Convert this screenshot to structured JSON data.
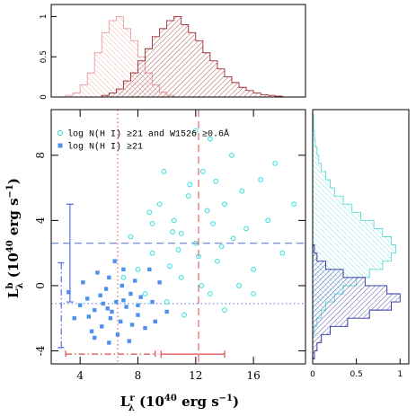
{
  "chart_data": [
    {
      "type": "scatter",
      "x_label": [
        "L",
        "r",
        "λ",
        " (10",
        "40",
        " erg s",
        "−1",
        ")"
      ],
      "y_label": [
        "L",
        "b",
        "λ",
        " (10",
        "40",
        " erg s",
        "−1",
        ")"
      ],
      "xlim": [
        2,
        19.6
      ],
      "ylim": [
        -4.8,
        10.8
      ],
      "xticks": [
        4,
        8,
        12,
        16
      ],
      "yticks": [
        -4,
        0,
        4,
        8
      ],
      "series": [
        {
          "name": "log N(H I) ≥21 and W1526 ≥0.6Å",
          "color": "#33dede",
          "marker": "circle",
          "x": [
            12,
            10.5,
            13.5,
            11,
            14,
            9,
            15.5,
            12.5,
            8,
            10,
            13,
            16,
            11.5,
            9.5,
            14.5,
            17,
            12,
            7.5,
            10.8,
            13.2,
            15,
            8.5,
            11.2,
            16.5,
            18,
            14,
            9.8,
            12.8,
            11,
            13.8,
            10.2,
            12.4,
            7,
            15.2,
            18.8,
            13,
            9,
            16,
            11.6,
            14.6,
            10.4,
            12.2,
            8.8,
            17.5,
            13.4
          ],
          "y": [
            2.6,
            4,
            1.5,
            0.5,
            5,
            2,
            3.5,
            7,
            1,
            -1,
            -0.5,
            1,
            5.5,
            5,
            8,
            4,
            9.5,
            3,
            2.2,
            3.8,
            0,
            -0.5,
            -1.8,
            6.5,
            2,
            -1.5,
            7,
            4.6,
            3.2,
            2.4,
            1.2,
            0,
            0.5,
            5.8,
            5,
            9,
            3.8,
            -0.5,
            6.2,
            2.9,
            3.3,
            1.8,
            4.5,
            7.5,
            6.4
          ]
        },
        {
          "name": "log N(H I) ≥21",
          "color": "#4f8ff0",
          "marker": "square",
          "x": [
            6.5,
            5,
            7.5,
            6,
            8,
            4.5,
            5.5,
            7,
            9,
            6.8,
            4,
            5.8,
            7.8,
            6.2,
            8.5,
            3.6,
            5.2,
            9.5,
            6.6,
            7.2,
            4.8,
            5.6,
            8.2,
            6,
            10,
            3.2,
            7.6,
            6.9,
            5.4,
            9.2,
            4.2,
            6.4,
            7.4,
            5,
            8.8,
            6.1,
            7,
            4.6,
            5.9,
            8
          ],
          "y": [
            -1,
            -1.5,
            -0.5,
            0.5,
            -1.8,
            -0.8,
            -2.5,
            1,
            -1,
            -2.2,
            -1.2,
            -0.2,
            0.3,
            -1.6,
            -2.6,
            -2,
            0.8,
            0.2,
            -3,
            -1.3,
            -2.8,
            -1.1,
            -0.7,
            -3.5,
            -1.6,
            -0.4,
            -2.4,
            0,
            -0.6,
            -2.2,
            0.2,
            1.5,
            -3.4,
            -3.2,
            1,
            -2,
            -0.9,
            -1.9,
            -1.4,
            -1.2
          ]
        }
      ],
      "reference_lines": [
        {
          "axis": "x",
          "value": 12.2,
          "color": "#e04848",
          "style": "dashed"
        },
        {
          "axis": "x",
          "value": 6.6,
          "color": "#e04848",
          "style": "dotted"
        },
        {
          "axis": "y",
          "value": 2.6,
          "color": "#4f6fe0",
          "style": "dashed"
        },
        {
          "axis": "y",
          "value": -1.1,
          "color": "#4f6fe0",
          "style": "dotted"
        }
      ],
      "error_bars": [
        {
          "orientation": "h",
          "at": -4.2,
          "center": 11.8,
          "error": 2.2,
          "color": "#e04848",
          "style": "solid"
        },
        {
          "orientation": "h",
          "at": -4.2,
          "center": 6.1,
          "error": 3.1,
          "color": "#e04848",
          "style": "dashdot"
        },
        {
          "orientation": "v",
          "at": 3.3,
          "center": 2,
          "error": 3,
          "color": "#4f6fe0",
          "style": "solid"
        },
        {
          "orientation": "v",
          "at": 2.7,
          "center": -1.2,
          "error": 2.6,
          "color": "#4f6fe0",
          "style": "dashdot"
        }
      ]
    },
    {
      "type": "histogram",
      "orientation": "vertical",
      "bins": [
        3,
        3.5,
        4,
        4.5,
        5,
        5.5,
        6,
        6.5,
        7,
        7.5,
        8,
        8.5,
        9,
        9.5,
        10,
        10.5,
        11,
        11.5,
        12,
        12.5,
        13,
        13.5,
        14,
        14.5,
        15,
        15.5,
        16,
        16.5,
        17,
        17.5,
        18
      ],
      "xlim": [
        2,
        19.6
      ],
      "ylim": [
        0,
        1.15
      ],
      "yticks": [
        0,
        0.5,
        1
      ],
      "series": [
        {
          "color": "#e89a9a",
          "values": [
            0.02,
            0.05,
            0.15,
            0.3,
            0.55,
            0.8,
            0.95,
            1,
            0.85,
            0.7,
            0.5,
            0.3,
            0.15,
            0.06,
            0.02,
            0,
            0,
            0,
            0,
            0,
            0,
            0,
            0,
            0,
            0,
            0,
            0,
            0,
            0,
            0
          ]
        },
        {
          "color": "#9c2a2a",
          "values": [
            0,
            0,
            0,
            0,
            0,
            0.02,
            0.05,
            0.1,
            0.2,
            0.3,
            0.45,
            0.6,
            0.75,
            0.85,
            0.95,
            1,
            0.9,
            0.8,
            0.7,
            0.55,
            0.45,
            0.35,
            0.25,
            0.18,
            0.12,
            0.08,
            0.05,
            0.03,
            0.02,
            0.01
          ]
        }
      ]
    },
    {
      "type": "histogram",
      "orientation": "horizontal",
      "bins": [
        -4.5,
        -4,
        -3.5,
        -3,
        -2.5,
        -2,
        -1.5,
        -1,
        -0.5,
        0,
        0.5,
        1,
        1.5,
        2,
        2.5,
        3,
        3.5,
        4,
        4.5,
        5,
        5.5,
        6,
        6.5,
        7,
        7.5,
        8,
        8.5,
        9,
        9.5,
        10,
        10.5
      ],
      "ylim": [
        -4.8,
        10.8
      ],
      "xlim": [
        0,
        1.1
      ],
      "xticks": [
        0,
        0.5,
        1
      ],
      "series": [
        {
          "color": "#5fd8d8",
          "values": [
            0,
            0,
            0,
            0.02,
            0.05,
            0.1,
            0.15,
            0.25,
            0.35,
            0.5,
            0.65,
            0.8,
            0.9,
            0.95,
            0.9,
            0.8,
            0.7,
            0.55,
            0.45,
            0.35,
            0.25,
            0.2,
            0.15,
            0.1,
            0.07,
            0.05,
            0.03,
            0.02,
            0.01,
            0.01
          ]
        },
        {
          "color": "#2a2a9c",
          "values": [
            0.02,
            0.05,
            0.1,
            0.2,
            0.4,
            0.65,
            0.9,
            1,
            0.85,
            0.6,
            0.35,
            0.15,
            0.05,
            0.02,
            0,
            0,
            0,
            0,
            0,
            0,
            0,
            0,
            0,
            0,
            0,
            0,
            0,
            0,
            0,
            0
          ]
        }
      ]
    }
  ]
}
